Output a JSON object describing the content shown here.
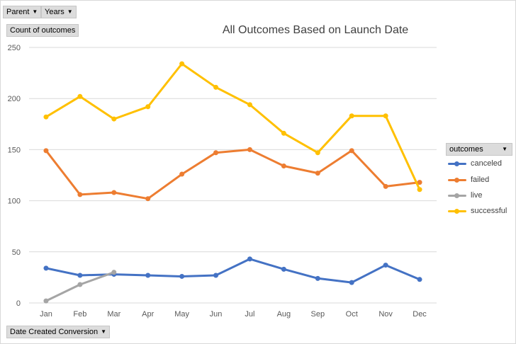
{
  "filters": {
    "parent_label": "Parent",
    "years_label": "Years",
    "value_field_label": "Count of outcomes",
    "axis_field_label": "Date Created Conversion"
  },
  "legend": {
    "header": "outcomes",
    "items": [
      {
        "label": "canceled",
        "color": "#4472c4"
      },
      {
        "label": "failed",
        "color": "#ed7d31"
      },
      {
        "label": "live",
        "color": "#a5a5a5"
      },
      {
        "label": "successful",
        "color": "#ffc000"
      }
    ]
  },
  "chart_data": {
    "type": "line",
    "title": "All Outcomes Based on Launch Date",
    "xlabel": "",
    "ylabel": "",
    "ylim": [
      0,
      250
    ],
    "yticks": [
      0,
      50,
      100,
      150,
      200,
      250
    ],
    "grid": true,
    "legend_position": "right",
    "categories": [
      "Jan",
      "Feb",
      "Mar",
      "Apr",
      "May",
      "Jun",
      "Jul",
      "Aug",
      "Sep",
      "Oct",
      "Nov",
      "Dec"
    ],
    "series": [
      {
        "name": "canceled",
        "color": "#4472c4",
        "values": [
          34,
          27,
          28,
          27,
          26,
          27,
          43,
          33,
          24,
          20,
          37,
          23
        ]
      },
      {
        "name": "failed",
        "color": "#ed7d31",
        "values": [
          149,
          106,
          108,
          102,
          126,
          147,
          150,
          134,
          127,
          149,
          114,
          118
        ]
      },
      {
        "name": "live",
        "color": "#a5a5a5",
        "values": [
          2,
          18,
          30,
          null,
          null,
          null,
          null,
          null,
          null,
          null,
          null,
          null
        ]
      },
      {
        "name": "successful",
        "color": "#ffc000",
        "values": [
          182,
          202,
          180,
          192,
          234,
          211,
          194,
          166,
          147,
          183,
          183,
          111
        ]
      }
    ]
  }
}
